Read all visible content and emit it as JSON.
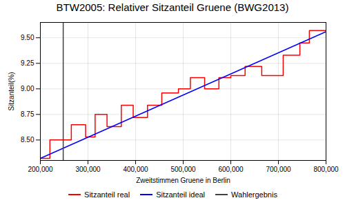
{
  "chart_data": {
    "type": "line",
    "title": "BTW2005: Relativer Sitzanteil Gruene (BWG2013)",
    "x_label": "Zweitstimmen Gruene in Berlin",
    "y_label": "Sitzanteil(%)",
    "series": [
      {
        "name": "Sitzanteil real",
        "color": "red",
        "x": [
          200000,
          220000,
          220000,
          265000,
          265000,
          295000,
          295000,
          315000,
          315000,
          340000,
          340000,
          370000,
          370000,
          395000,
          395000,
          425000,
          425000,
          455000,
          455000,
          490000,
          490000,
          515000,
          515000,
          545000,
          545000,
          575000,
          575000,
          600000,
          600000,
          630000,
          630000,
          665000,
          665000,
          710000,
          710000,
          745000,
          745000,
          765000,
          765000,
          800000
        ],
        "values": [
          8.32,
          8.32,
          8.5,
          8.5,
          8.65,
          8.65,
          8.53,
          8.53,
          8.75,
          8.75,
          8.63,
          8.63,
          8.84,
          8.84,
          8.72,
          8.72,
          8.84,
          8.84,
          8.96,
          8.96,
          9.0,
          9.0,
          9.11,
          9.11,
          9.0,
          9.0,
          9.11,
          9.11,
          9.13,
          9.13,
          9.22,
          9.22,
          9.13,
          9.13,
          9.33,
          9.33,
          9.45,
          9.45,
          9.57,
          9.57
        ]
      },
      {
        "name": "Sitzanteil ideal",
        "color": "blue",
        "x": [
          200000,
          800000
        ],
        "values": [
          8.32,
          9.56
        ]
      },
      {
        "name": "Wahlergebnis",
        "color": "#404040",
        "type": "vline",
        "x": 248000
      }
    ],
    "xlim": [
      200000,
      800000
    ],
    "xticks": [
      {
        "value": 200000,
        "label": "200,000"
      },
      {
        "value": 300000,
        "label": "300,000"
      },
      {
        "value": 400000,
        "label": "400,000"
      },
      {
        "value": 500000,
        "label": "500,000"
      },
      {
        "value": 600000,
        "label": "600,000"
      },
      {
        "value": 700000,
        "label": "700,000"
      },
      {
        "value": 800000,
        "label": "800,000"
      }
    ],
    "ylim": [
      8.3,
      9.65
    ],
    "yticks": [
      {
        "value": 8.5,
        "label": "8.50"
      },
      8.75,
      {
        "value": 9.0,
        "label": "9.00"
      },
      9.25,
      {
        "value": 9.5,
        "label": "9.50"
      }
    ],
    "grid": true,
    "legend": "bottom"
  }
}
